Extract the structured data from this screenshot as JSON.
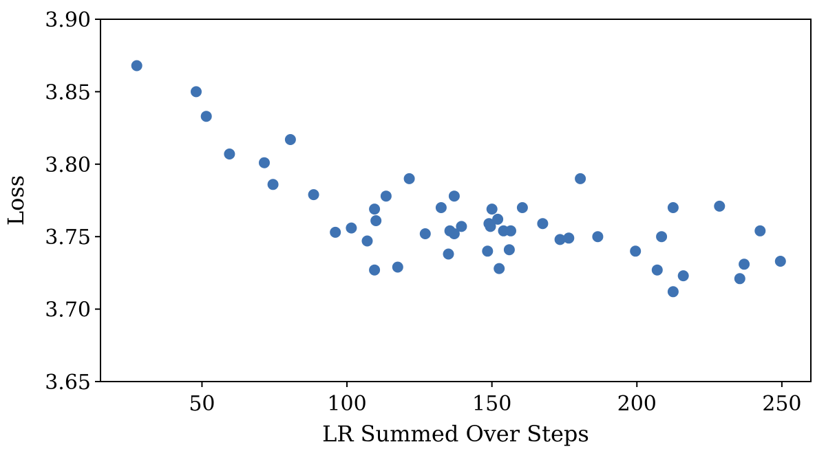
{
  "chart_data": {
    "type": "scatter",
    "title": "",
    "xlabel": "LR Summed Over Steps",
    "ylabel": "Loss",
    "xlim": [
      15,
      260
    ],
    "ylim": [
      3.65,
      3.9
    ],
    "x_ticks": [
      50,
      100,
      150,
      200,
      250
    ],
    "y_ticks": [
      3.65,
      3.7,
      3.75,
      3.8,
      3.85,
      3.9
    ],
    "x_tick_labels": [
      "50",
      "100",
      "150",
      "200",
      "250"
    ],
    "y_tick_labels": [
      "3.65",
      "3.70",
      "3.75",
      "3.80",
      "3.85",
      "3.90"
    ],
    "grid": false,
    "color": "#3f73b3",
    "series": [
      {
        "points": [
          [
            27.5,
            3.868
          ],
          [
            48,
            3.85
          ],
          [
            51.5,
            3.833
          ],
          [
            59.5,
            3.807
          ],
          [
            71.5,
            3.801
          ],
          [
            74.5,
            3.786
          ],
          [
            80.5,
            3.817
          ],
          [
            88.5,
            3.779
          ],
          [
            96,
            3.753
          ],
          [
            101.5,
            3.756
          ],
          [
            107,
            3.747
          ],
          [
            109.5,
            3.769
          ],
          [
            110,
            3.761
          ],
          [
            109.5,
            3.727
          ],
          [
            113.5,
            3.778
          ],
          [
            117.5,
            3.729
          ],
          [
            121.5,
            3.79
          ],
          [
            127,
            3.752
          ],
          [
            132.5,
            3.77
          ],
          [
            135,
            3.738
          ],
          [
            135.5,
            3.754
          ],
          [
            137,
            3.778
          ],
          [
            137,
            3.752
          ],
          [
            139.5,
            3.757
          ],
          [
            148.5,
            3.74
          ],
          [
            149,
            3.759
          ],
          [
            149.5,
            3.757
          ],
          [
            150,
            3.769
          ],
          [
            152,
            3.762
          ],
          [
            152.5,
            3.728
          ],
          [
            154,
            3.754
          ],
          [
            156,
            3.741
          ],
          [
            156.5,
            3.754
          ],
          [
            160.5,
            3.77
          ],
          [
            167.5,
            3.759
          ],
          [
            173.5,
            3.748
          ],
          [
            176.5,
            3.749
          ],
          [
            180.5,
            3.79
          ],
          [
            186.5,
            3.75
          ],
          [
            199.5,
            3.74
          ],
          [
            207,
            3.727
          ],
          [
            208.5,
            3.75
          ],
          [
            212.5,
            3.712
          ],
          [
            212.5,
            3.77
          ],
          [
            216,
            3.723
          ],
          [
            228.5,
            3.771
          ],
          [
            235.5,
            3.721
          ],
          [
            237,
            3.731
          ],
          [
            242.5,
            3.754
          ],
          [
            249.5,
            3.733
          ]
        ]
      }
    ]
  }
}
